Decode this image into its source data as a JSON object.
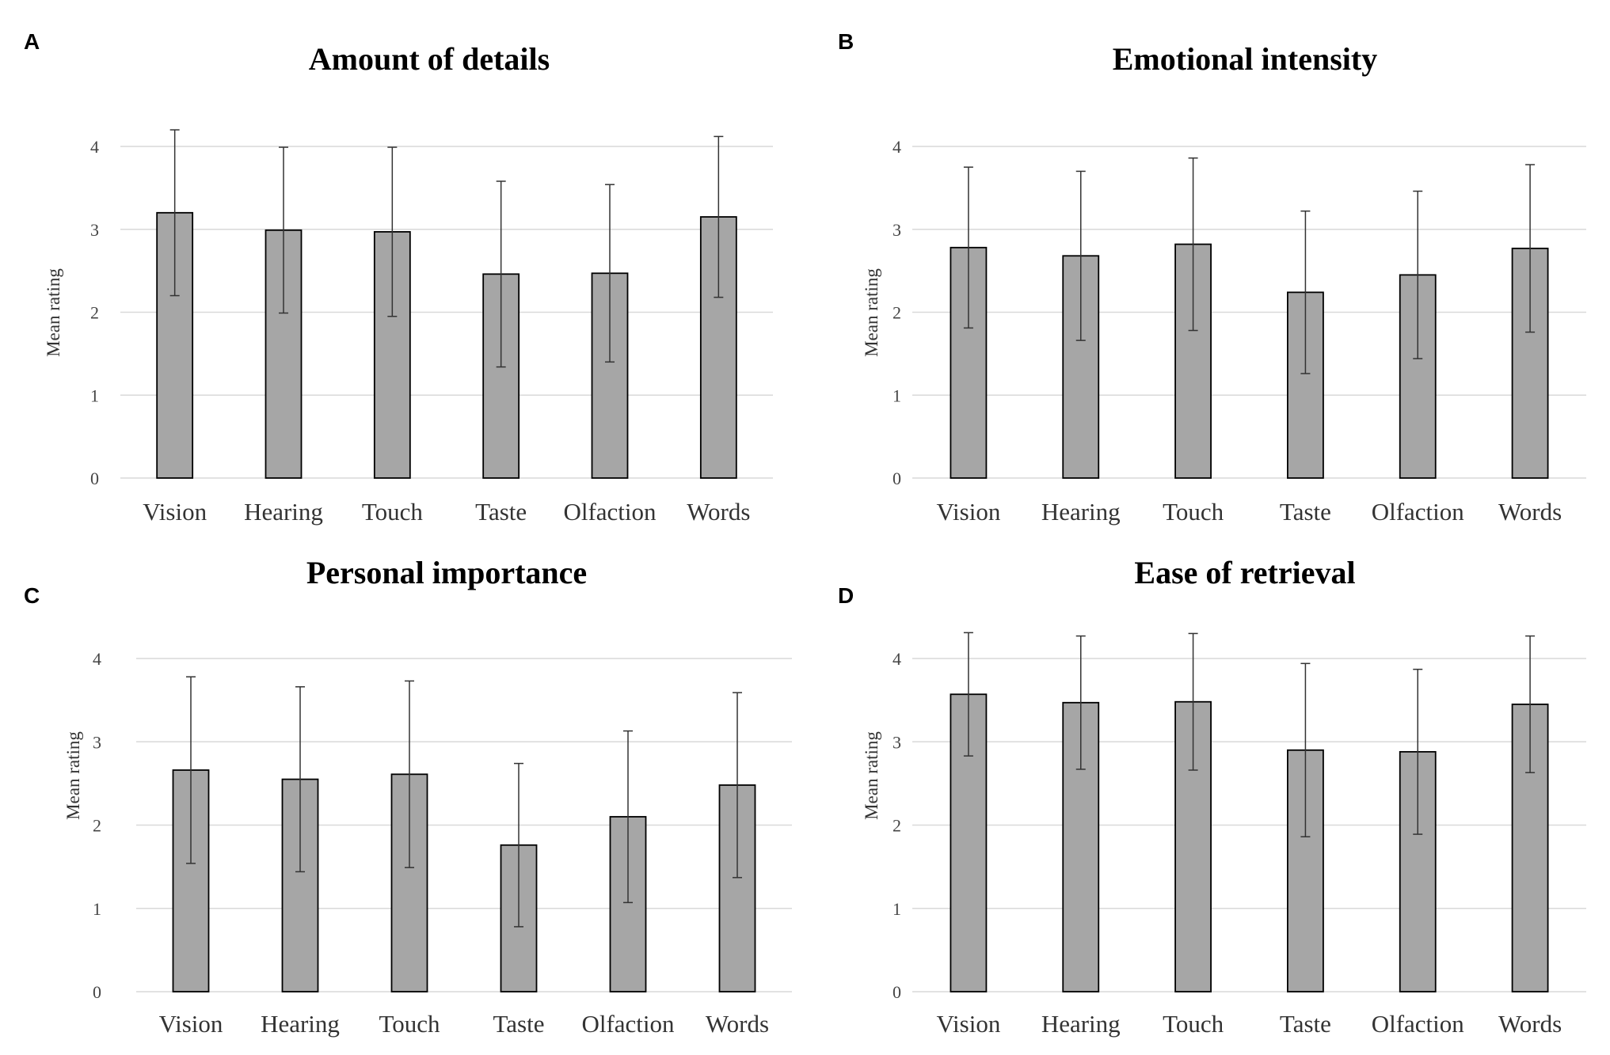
{
  "chart_data": [
    {
      "type": "bar",
      "panel": "A",
      "title": "Amount of details",
      "xlabel": "",
      "ylabel": "Mean rating",
      "ylim": [
        0,
        4
      ],
      "yticks": [
        0,
        1,
        2,
        3,
        4
      ],
      "grid": true,
      "categories": [
        "Vision",
        "Hearing",
        "Touch",
        "Taste",
        "Olfaction",
        "Words"
      ],
      "values": [
        3.2,
        2.99,
        2.97,
        2.46,
        2.47,
        3.15
      ],
      "errors": [
        1.0,
        1.0,
        1.02,
        1.12,
        1.07,
        0.97
      ]
    },
    {
      "type": "bar",
      "panel": "B",
      "title": "Emotional intensity",
      "xlabel": "",
      "ylabel": "Mean rating",
      "ylim": [
        0,
        4
      ],
      "yticks": [
        0,
        1,
        2,
        3,
        4
      ],
      "grid": true,
      "categories": [
        "Vision",
        "Hearing",
        "Touch",
        "Taste",
        "Olfaction",
        "Words"
      ],
      "values": [
        2.78,
        2.68,
        2.82,
        2.24,
        2.45,
        2.77
      ],
      "errors": [
        0.97,
        1.02,
        1.04,
        0.98,
        1.01,
        1.01
      ]
    },
    {
      "type": "bar",
      "panel": "C",
      "title": "Personal importance",
      "xlabel": "",
      "ylabel": "Mean rating",
      "ylim": [
        0,
        4
      ],
      "yticks": [
        0,
        1,
        2,
        3,
        4
      ],
      "grid": true,
      "categories": [
        "Vision",
        "Hearing",
        "Touch",
        "Taste",
        "Olfaction",
        "Words"
      ],
      "values": [
        2.66,
        2.55,
        2.61,
        1.76,
        2.1,
        2.48
      ],
      "errors": [
        1.12,
        1.11,
        1.12,
        0.98,
        1.03,
        1.11
      ]
    },
    {
      "type": "bar",
      "panel": "D",
      "title": "Ease of retrieval",
      "xlabel": "",
      "ylabel": "Mean rating",
      "ylim": [
        0,
        4
      ],
      "yticks": [
        0,
        1,
        2,
        3,
        4
      ],
      "grid": true,
      "categories": [
        "Vision",
        "Hearing",
        "Touch",
        "Taste",
        "Olfaction",
        "Words"
      ],
      "values": [
        3.57,
        3.47,
        3.48,
        2.9,
        2.88,
        3.45
      ],
      "errors": [
        0.74,
        0.8,
        0.82,
        1.04,
        0.99,
        0.82
      ]
    }
  ]
}
